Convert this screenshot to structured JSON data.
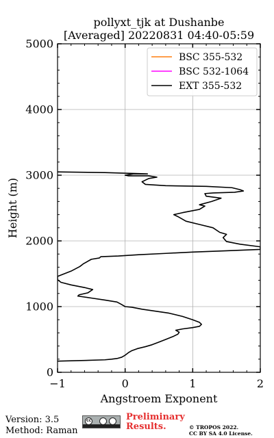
{
  "chart_data": {
    "type": "line",
    "title": [
      "pollyxt_tjk at Dushanbe",
      "[Averaged] 20220831 04:40-05:59"
    ],
    "xlabel": "Angstroem Exponent",
    "ylabel": "Height (m)",
    "xlim": [
      -1,
      2
    ],
    "ylim": [
      0,
      5000
    ],
    "xticks": [
      -1,
      0,
      1,
      2
    ],
    "yticks": [
      0,
      1000,
      2000,
      3000,
      4000,
      5000
    ],
    "grid": true,
    "legend_position": "top-right",
    "series": [
      {
        "name": "BSC 355-532",
        "color": "#ff7f0e",
        "x": [],
        "y": []
      },
      {
        "name": "BSC 532-1064",
        "color": "#ff00ff",
        "x": [],
        "y": []
      },
      {
        "name": "EXT 355-532",
        "color": "#000000",
        "x": [
          -1.0,
          -0.6,
          -0.3,
          -0.2,
          -0.12,
          -0.05,
          0.0,
          0.05,
          0.1,
          0.18,
          0.3,
          0.4,
          0.5,
          0.6,
          0.72,
          0.78,
          0.8,
          0.75,
          0.85,
          1.0,
          1.1,
          1.13,
          1.1,
          1.0,
          0.85,
          0.65,
          0.45,
          0.25,
          0.1,
          0.0,
          -0.05,
          -0.12,
          -0.3,
          -0.5,
          -0.7,
          -0.68,
          -0.55,
          -0.48,
          -0.6,
          -0.8,
          -0.95,
          -1.0,
          -1.0,
          -0.8,
          -0.67,
          -0.62,
          -0.5,
          -0.38,
          -0.36,
          -0.1,
          0.2,
          0.6,
          1.0,
          1.5,
          2.0,
          2.0,
          1.7,
          1.5,
          1.45,
          1.5,
          1.4,
          1.3,
          1.1,
          0.9,
          0.78,
          0.72,
          0.85,
          1.1,
          1.18,
          1.1,
          1.28,
          1.42,
          1.2,
          1.18,
          1.3,
          1.62,
          1.75,
          1.7,
          1.58,
          1.2,
          0.6,
          0.3,
          0.25,
          0.35,
          0.47,
          0.35,
          0.05,
          0.0,
          0.12,
          0.33,
          -0.3,
          -1.0
        ],
        "y": [
          170,
          180,
          190,
          200,
          210,
          230,
          260,
          300,
          330,
          360,
          390,
          420,
          460,
          500,
          550,
          580,
          610,
          640,
          660,
          680,
          700,
          730,
          760,
          800,
          850,
          900,
          930,
          960,
          990,
          1000,
          1030,
          1070,
          1100,
          1130,
          1160,
          1180,
          1210,
          1260,
          1290,
          1330,
          1370,
          1410,
          1460,
          1540,
          1610,
          1650,
          1720,
          1740,
          1760,
          1770,
          1790,
          1810,
          1830,
          1850,
          1870,
          1910,
          1950,
          1990,
          2050,
          2100,
          2130,
          2200,
          2250,
          2300,
          2370,
          2400,
          2430,
          2480,
          2530,
          2550,
          2600,
          2650,
          2680,
          2720,
          2730,
          2740,
          2760,
          2780,
          2810,
          2830,
          2840,
          2860,
          2900,
          2950,
          2970,
          2990,
          2990,
          3000,
          3020,
          3020,
          3040,
          3050
        ]
      }
    ]
  },
  "footer": {
    "version": "Version: 3.5",
    "method": "Method: Raman",
    "prelim_line1": "Preliminary",
    "prelim_line2": "Results.",
    "copyright_line1": "© TROPOS 2022.",
    "copyright_line2": "CC BY SA 4.0 License."
  },
  "cc_badge": {
    "cc": "cc",
    "by": "BY",
    "sa": "SA"
  }
}
